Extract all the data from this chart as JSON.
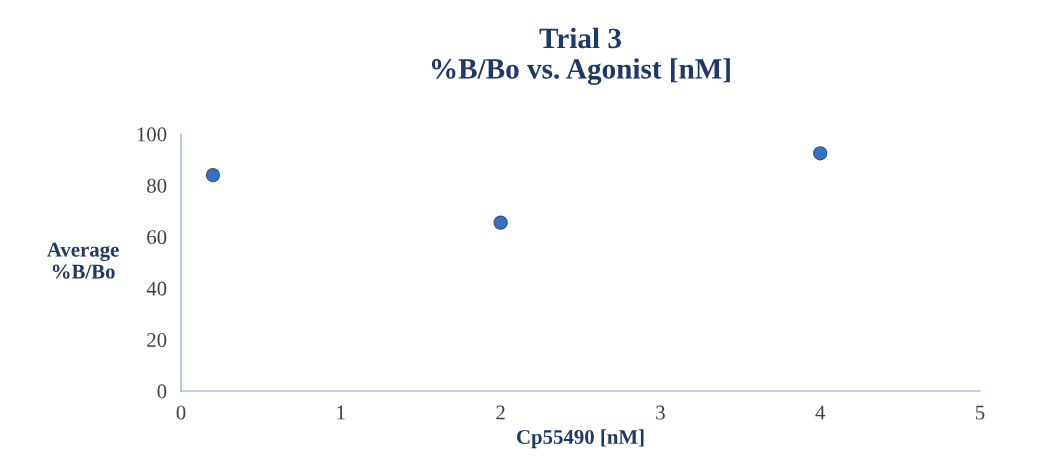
{
  "chart_data": {
    "type": "scatter",
    "title": "Trial 3\n%B/Bo vs. Agonist [nM]",
    "xlabel": "Cp55490 [nM]",
    "ylabel": "Average\n%B/Bo",
    "x": [
      0.2,
      2,
      4
    ],
    "values": [
      84,
      65.5,
      92.5
    ],
    "color": "#3c6fbe",
    "marker": "circle",
    "xlim": [
      0,
      5
    ],
    "xticks": [
      0,
      1,
      2,
      3,
      4,
      5
    ],
    "ylim": [
      0,
      100
    ],
    "yticks": [
      0,
      20,
      40,
      60,
      80,
      100
    ],
    "grid": false,
    "legend": false
  }
}
